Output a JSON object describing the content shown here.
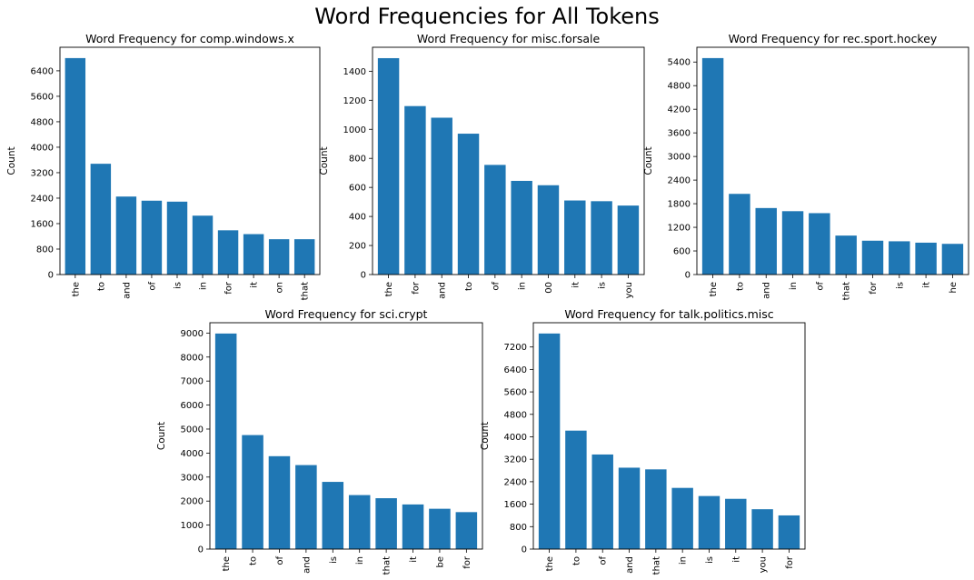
{
  "figure_title": "Word Frequencies for All Tokens",
  "colors": {
    "bar": "#1f77b4",
    "axis": "#000000",
    "background": "#ffffff"
  },
  "chart_data": [
    {
      "type": "bar",
      "title": "Word Frequency for comp.windows.x",
      "xlabel": "",
      "ylabel": "Count",
      "categories": [
        "the",
        "to",
        "and",
        "of",
        "is",
        "in",
        "for",
        "it",
        "on",
        "that"
      ],
      "values": [
        6800,
        3480,
        2450,
        2320,
        2290,
        1850,
        1390,
        1270,
        1110,
        1110
      ],
      "ylim": [
        0,
        7140
      ],
      "yticks": [
        0,
        800,
        1600,
        2400,
        3200,
        4000,
        4800,
        5600,
        6400
      ],
      "grid": false
    },
    {
      "type": "bar",
      "title": "Word Frequency for misc.forsale",
      "xlabel": "",
      "ylabel": "Count",
      "categories": [
        "the",
        "for",
        "and",
        "to",
        "of",
        "in",
        "00",
        "it",
        "is",
        "you"
      ],
      "values": [
        1490,
        1160,
        1080,
        970,
        755,
        645,
        615,
        510,
        505,
        475
      ],
      "ylim": [
        0,
        1565
      ],
      "yticks": [
        0,
        200,
        400,
        600,
        800,
        1000,
        1200,
        1400
      ],
      "grid": false
    },
    {
      "type": "bar",
      "title": "Word Frequency for rec.sport.hockey",
      "xlabel": "",
      "ylabel": "Count",
      "categories": [
        "the",
        "to",
        "and",
        "in",
        "of",
        "that",
        "for",
        "is",
        "it",
        "he"
      ],
      "values": [
        5500,
        2050,
        1690,
        1610,
        1560,
        990,
        860,
        845,
        810,
        780
      ],
      "ylim": [
        0,
        5775
      ],
      "yticks": [
        0,
        600,
        1200,
        1800,
        2400,
        3000,
        3600,
        4200,
        4800,
        5400
      ],
      "grid": false
    },
    {
      "type": "bar",
      "title": "Word Frequency for sci.crypt",
      "xlabel": "",
      "ylabel": "Count",
      "categories": [
        "the",
        "to",
        "of",
        "and",
        "is",
        "in",
        "that",
        "it",
        "be",
        "for"
      ],
      "values": [
        8980,
        4750,
        3870,
        3500,
        2800,
        2250,
        2120,
        1860,
        1680,
        1540
      ],
      "ylim": [
        0,
        9430
      ],
      "yticks": [
        0,
        1000,
        2000,
        3000,
        4000,
        5000,
        6000,
        7000,
        8000,
        9000
      ],
      "grid": false
    },
    {
      "type": "bar",
      "title": "Word Frequency for talk.politics.misc",
      "xlabel": "",
      "ylabel": "Count",
      "categories": [
        "the",
        "to",
        "of",
        "and",
        "that",
        "in",
        "is",
        "it",
        "you",
        "for"
      ],
      "values": [
        7680,
        4220,
        3370,
        2900,
        2840,
        2180,
        1890,
        1790,
        1420,
        1200
      ],
      "ylim": [
        0,
        8064
      ],
      "yticks": [
        0,
        800,
        1600,
        2400,
        3200,
        4000,
        4800,
        5600,
        6400,
        7200
      ],
      "grid": false
    }
  ]
}
